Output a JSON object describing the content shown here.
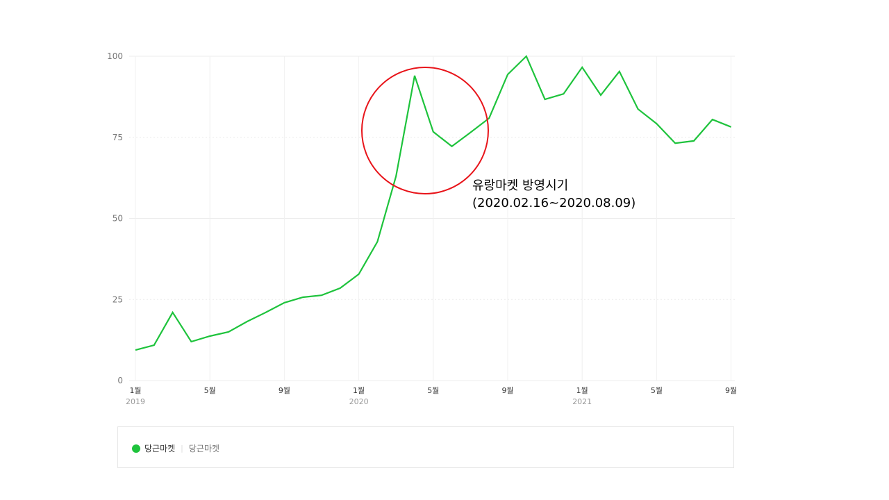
{
  "chart_data": {
    "type": "line",
    "title": "",
    "xlabel": "",
    "ylabel": "",
    "ylim": [
      0,
      100
    ],
    "yticks": [
      0,
      25,
      50,
      75,
      100
    ],
    "ytick_labels": [
      "0",
      "25",
      "50",
      "75",
      "100"
    ],
    "xtick_labels": [
      {
        "month": "1월",
        "year": "2019"
      },
      {
        "month": "5월",
        "year": ""
      },
      {
        "month": "9월",
        "year": ""
      },
      {
        "month": "1월",
        "year": "2020"
      },
      {
        "month": "5월",
        "year": ""
      },
      {
        "month": "9월",
        "year": ""
      },
      {
        "month": "1월",
        "year": "2021"
      },
      {
        "month": "5월",
        "year": ""
      },
      {
        "month": "9월",
        "year": ""
      }
    ],
    "grid": true,
    "legend_position": "bottom",
    "x": [
      "2019-01",
      "2019-02",
      "2019-03",
      "2019-04",
      "2019-05",
      "2019-06",
      "2019-07",
      "2019-08",
      "2019-09",
      "2019-10",
      "2019-11",
      "2019-12",
      "2020-01",
      "2020-02",
      "2020-03",
      "2020-04",
      "2020-05",
      "2020-06",
      "2020-07",
      "2020-08",
      "2020-09",
      "2020-10",
      "2020-11",
      "2020-12",
      "2021-01",
      "2021-02",
      "2021-03",
      "2021-04",
      "2021-05",
      "2021-06",
      "2021-07",
      "2021-08",
      "2021-09"
    ],
    "series": [
      {
        "name": "당근마켓",
        "color": "#1ec33c",
        "values": [
          9.4,
          10.9,
          21.0,
          12.0,
          13.7,
          15.0,
          18.2,
          21.0,
          24.0,
          25.7,
          26.3,
          28.5,
          32.8,
          42.8,
          63.0,
          94.0,
          76.7,
          72.2,
          76.5,
          80.9,
          94.4,
          100.0,
          86.7,
          88.4,
          96.6,
          88.0,
          95.3,
          83.7,
          79.2,
          73.2,
          73.9,
          80.5,
          78.2
        ]
      }
    ],
    "annotations": [
      {
        "type": "circle",
        "color": "#e8141a",
        "label_line1": "유랑마켓 방영시기",
        "label_line2": "(2020.02.16~2020.08.09)"
      }
    ]
  },
  "legend": {
    "items": [
      {
        "name": "당근마켓",
        "sub": "당근마켓",
        "color": "#1ec33c",
        "separator": "|"
      }
    ]
  }
}
